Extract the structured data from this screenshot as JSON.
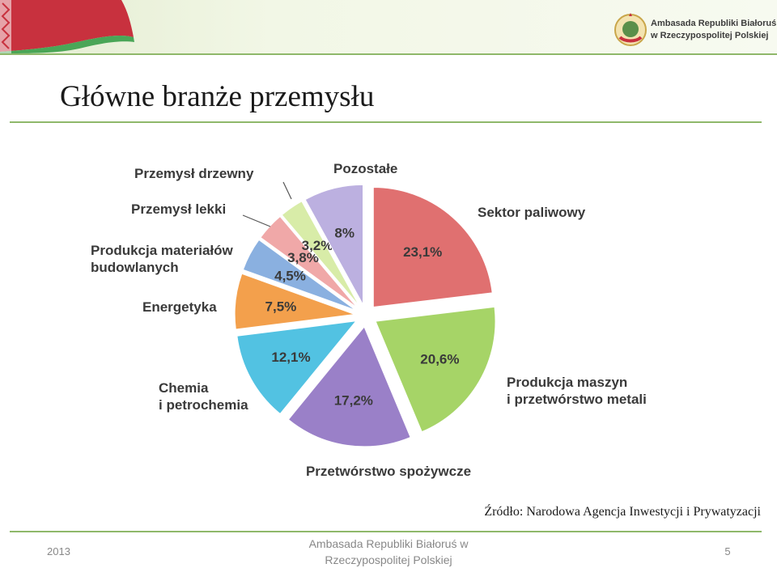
{
  "header": {
    "embassy_line1": "Ambasada Republiki Białoruś",
    "embassy_line2": "w Rzeczypospolitej Polskiej",
    "flag_colors": [
      "#c8313e",
      "#4aa657",
      "#ffffff"
    ]
  },
  "title": "Główne branże przemysłu",
  "chart_data": {
    "type": "pie",
    "title": "",
    "exploded": true,
    "start": "top, clockwise",
    "slices": [
      {
        "label": "Sektor paliwowy",
        "value": 23.1,
        "value_label": "23,1%",
        "color": "#e07070"
      },
      {
        "label": "Produkcja maszyn\ni przetwórstwo metali",
        "value": 20.6,
        "value_label": "20,6%",
        "color": "#a6d467"
      },
      {
        "label": "Przetwórstwo spożywcze",
        "value": 17.2,
        "value_label": "17,2%",
        "color": "#9a80c8"
      },
      {
        "label": "Chemia\ni petrochemia",
        "value": 12.1,
        "value_label": "12,1%",
        "color": "#52c2e2"
      },
      {
        "label": "Energetyka",
        "value": 7.5,
        "value_label": "7,5%",
        "color": "#f3a04c"
      },
      {
        "label": "Produkcja materiałów\nbudowlanych",
        "value": 4.5,
        "value_label": "4,5%",
        "color": "#8ab0e0"
      },
      {
        "label": "Przemysł lekki",
        "value": 3.8,
        "value_label": "3,8%",
        "color": "#f0a8a8"
      },
      {
        "label": "Przemysł drzewny",
        "value": 3.2,
        "value_label": "3,2%",
        "color": "#d8eca8"
      },
      {
        "label": "Pozostałe",
        "value": 8.0,
        "value_label": "8%",
        "color": "#bcb0e0"
      }
    ]
  },
  "source": "Źródło: Narodowa Agencja Inwestycji i Prywatyzacji",
  "footer": {
    "year": "2013",
    "center_line1": "Ambasada Republiki Białoruś w",
    "center_line2": "Rzeczypospolitej Polskiej",
    "page_number": "5"
  }
}
